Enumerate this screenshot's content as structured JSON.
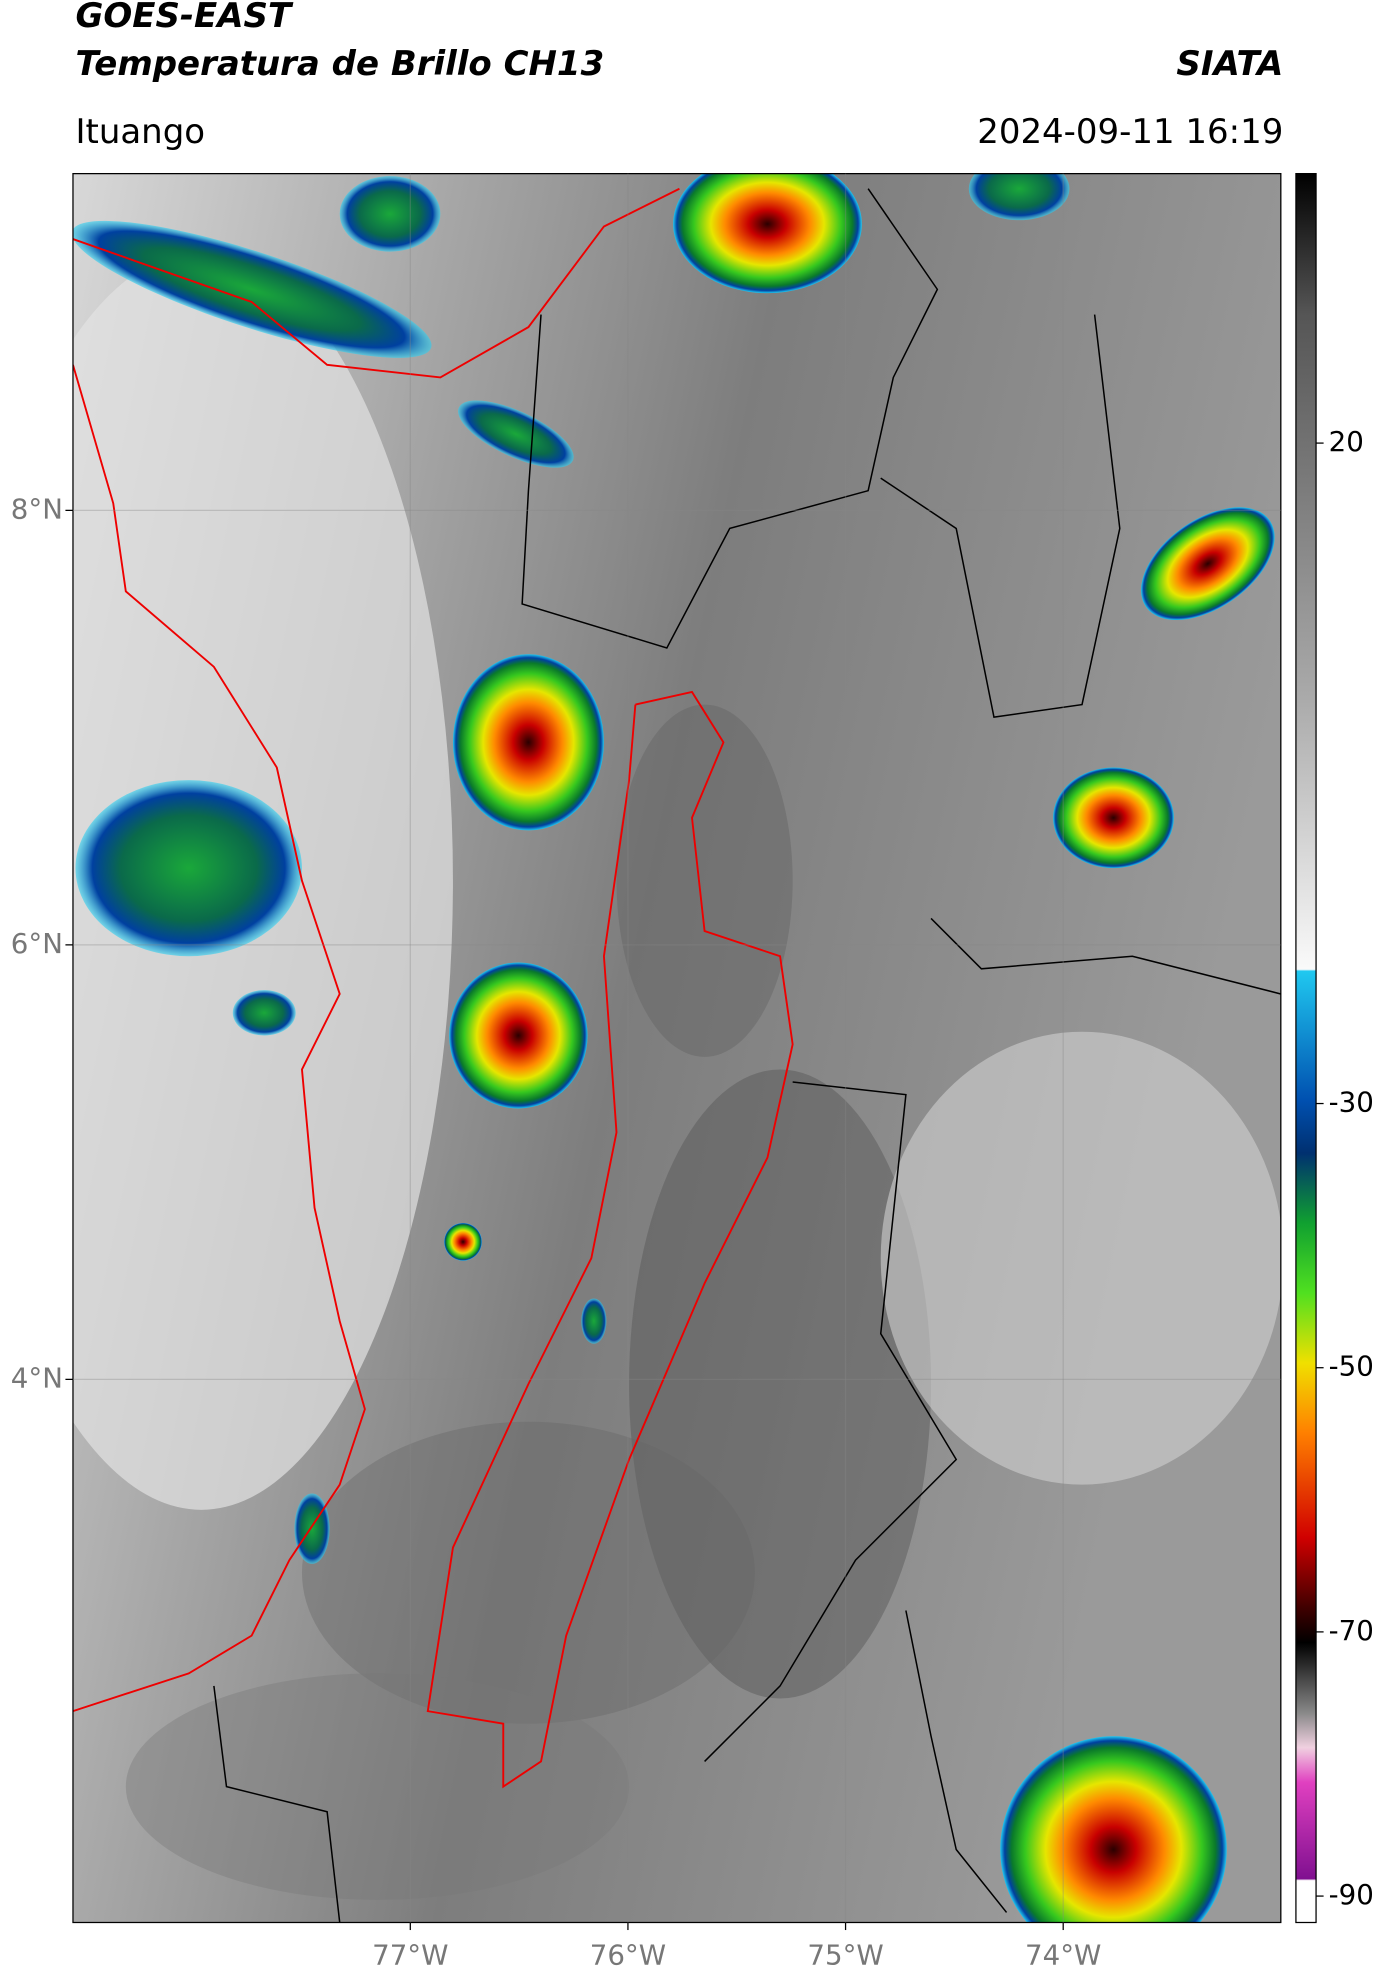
{
  "header": {
    "title": "GOES-EAST",
    "product": "Temperatura de Brillo CH13",
    "agency": "SIATA",
    "location": "Ituango",
    "timestamp": "2024-09-11 16:19"
  },
  "map": {
    "xlim": [
      -78.55,
      -73.0
    ],
    "ylim": [
      1.5,
      9.55
    ],
    "xticks": [
      {
        "value": -77,
        "label": "77°W"
      },
      {
        "value": -76,
        "label": "76°W"
      },
      {
        "value": -75,
        "label": "75°W"
      },
      {
        "value": -74,
        "label": "74°W"
      }
    ],
    "yticks": [
      {
        "value": 8,
        "label": "8°N"
      },
      {
        "value": 6,
        "label": "6°N"
      },
      {
        "value": 4,
        "label": "4°N"
      }
    ],
    "grid": true,
    "colorbar": {
      "clim": [
        -92,
        40.4
      ],
      "ticks": [
        20,
        -30,
        -50,
        -70,
        -90
      ]
    }
  }
}
